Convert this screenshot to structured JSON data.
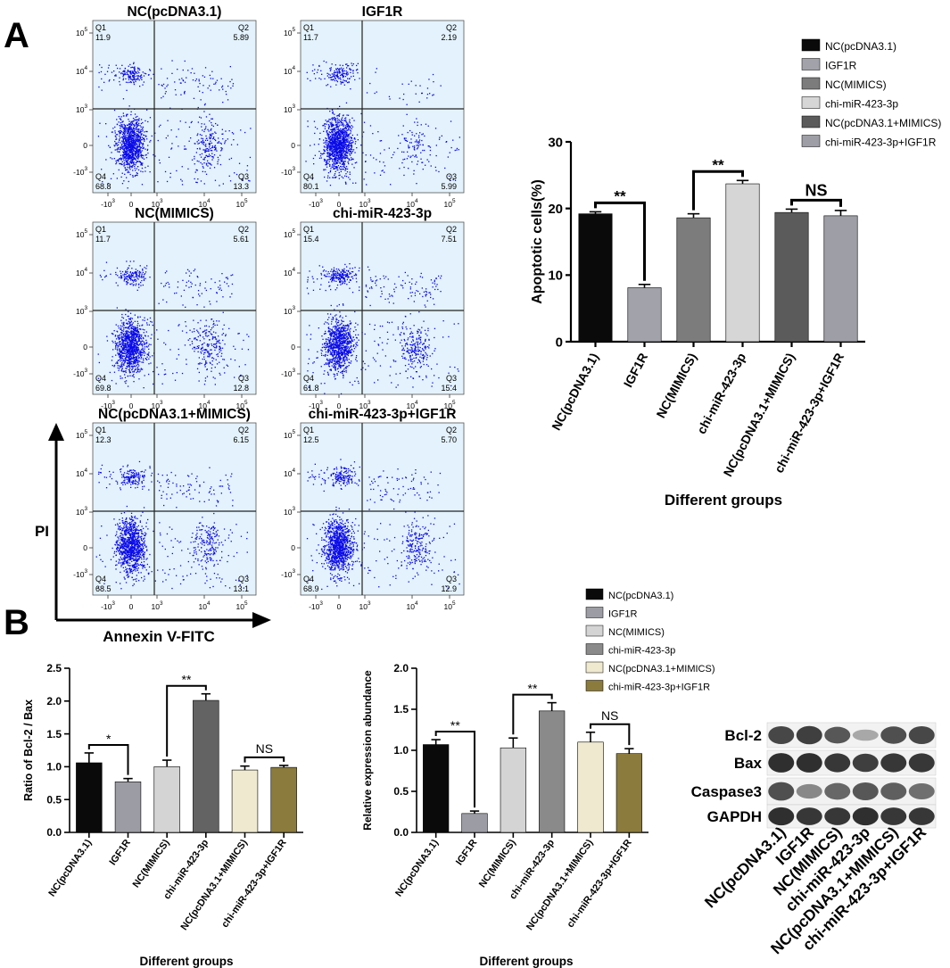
{
  "panel_labels": {
    "a": "A",
    "b": "B"
  },
  "flow": {
    "plots": [
      {
        "title": "NC(pcDNA3.1)",
        "q1_label": "Q1",
        "q1": "11.9",
        "q2_label": "Q2",
        "q2": "5.89",
        "q3_label": "Q3",
        "q3": "13.3",
        "q4_label": "Q4",
        "q4": "68.8"
      },
      {
        "title": "IGF1R",
        "q1_label": "Q1",
        "q1": "11.7",
        "q2_label": "Q2",
        "q2": "2.19",
        "q3_label": "Q3",
        "q3": "5.99",
        "q4_label": "Q4",
        "q4": "80.1"
      },
      {
        "title": "NC(MIMICS)",
        "q1_label": "Q1",
        "q1": "11.7",
        "q2_label": "Q2",
        "q2": "5.61",
        "q3_label": "Q3",
        "q3": "12.8",
        "q4_label": "Q4",
        "q4": "69.8"
      },
      {
        "title": "chi-miR-423-3p",
        "q1_label": "Q1",
        "q1": "15.4",
        "q2_label": "Q2",
        "q2": "7.51",
        "q3_label": "Q3",
        "q3": "15.4",
        "q4_label": "Q4",
        "q4": "61.8"
      },
      {
        "title": "NC(pcDNA3.1+MIMICS)",
        "q1_label": "Q1",
        "q1": "12.3",
        "q2_label": "Q2",
        "q2": "6.15",
        "q3_label": "Q3",
        "q3": "13.1",
        "q4_label": "Q4",
        "q4": "68.5"
      },
      {
        "title": "chi-miR-423-3p+IGF1R",
        "q1_label": "Q1",
        "q1": "12.5",
        "q2_label": "Q2",
        "q2": "5.70",
        "q3_label": "Q3",
        "q3": "12.9",
        "q4_label": "Q4",
        "q4": "68.9"
      }
    ],
    "x_ticks": [
      {
        "base": "-10",
        "exp": "3"
      },
      {
        "base": "0",
        "exp": ""
      },
      {
        "base": "10",
        "exp": "3"
      },
      {
        "base": "10",
        "exp": "4"
      },
      {
        "base": "10",
        "exp": "5"
      }
    ],
    "y_ticks": [
      {
        "base": "10",
        "exp": "5"
      },
      {
        "base": "10",
        "exp": "4"
      },
      {
        "base": "10",
        "exp": "3"
      },
      {
        "base": "0",
        "exp": ""
      },
      {
        "base": "-10",
        "exp": "3"
      }
    ],
    "y_axis_title": "PI",
    "x_axis_title": "Annexin V-FITC",
    "colors": {
      "panel_bg": "#e3f2fc",
      "dots": "#0a0ae8",
      "quadrant_line": "#222222"
    }
  },
  "chart_data": [
    {
      "id": "apoptosis",
      "type": "bar",
      "title": "",
      "xlabel": "Different groups",
      "ylabel": "Apoptotic cells(%)",
      "ylim": [
        0,
        30
      ],
      "yticks": [
        0,
        10,
        20,
        30
      ],
      "categories": [
        "NC(pcDNA3.1)",
        "IGF1R",
        "NC(MIMICS)",
        "chi-miR-423-3p",
        "NC(pcDNA3.1+MIMICS)",
        "chi-miR-423-3p+IGF1R"
      ],
      "values": [
        19.2,
        8.1,
        18.6,
        23.7,
        19.4,
        18.9
      ],
      "errors": [
        0.3,
        0.5,
        0.6,
        0.5,
        0.5,
        0.8
      ],
      "colors": [
        "#0a0a0a",
        "#a2a2aa",
        "#7c7c7c",
        "#d6d6d6",
        "#5b5b5b",
        "#9e9ea6"
      ],
      "legend_position": "top-right",
      "significance": [
        {
          "from": 0,
          "to": 1,
          "label": "**"
        },
        {
          "from": 2,
          "to": 3,
          "label": "**"
        },
        {
          "from": 4,
          "to": 5,
          "label": "NS"
        }
      ]
    },
    {
      "id": "bcl2-bax",
      "type": "bar",
      "title": "",
      "xlabel": "Different groups",
      "ylabel": "Ratio of Bcl-2 / Bax",
      "ylim": [
        0,
        2.5
      ],
      "yticks": [
        "0.0",
        "0.5",
        "1.0",
        "1.5",
        "2.0",
        "2.5"
      ],
      "categories": [
        "NC(pcDNA3.1)",
        "IGF1R",
        "NC(MIMICS)",
        "chi-miR-423-3p",
        "NC(pcDNA3.1+MIMICS)",
        "chi-miR-423-3p+IGF1R"
      ],
      "values": [
        1.06,
        0.77,
        1.0,
        2.01,
        0.95,
        0.99
      ],
      "errors": [
        0.15,
        0.05,
        0.1,
        0.1,
        0.06,
        0.03
      ],
      "colors": [
        "#0a0a0a",
        "#9c9ca4",
        "#d4d4d4",
        "#636363",
        "#efe9cf",
        "#8b7b3c"
      ],
      "significance": [
        {
          "from": 0,
          "to": 1,
          "label": "*"
        },
        {
          "from": 2,
          "to": 3,
          "label": "**"
        },
        {
          "from": 4,
          "to": 5,
          "label": "NS"
        }
      ]
    },
    {
      "id": "relative-expression",
      "type": "bar",
      "title": "",
      "xlabel": "Different groups",
      "ylabel": "Relative expression abundance",
      "ylim": [
        0,
        2.0
      ],
      "yticks": [
        "0.0",
        "0.5",
        "1.0",
        "1.5",
        "2.0"
      ],
      "categories": [
        "NC(pcDNA3.1)",
        "IGF1R",
        "NC(MIMICS)",
        "chi-miR-423-3p",
        "NC(pcDNA3.1+MIMICS)",
        "chi-miR-423-3p+IGF1R"
      ],
      "values": [
        1.07,
        0.23,
        1.03,
        1.48,
        1.1,
        0.96
      ],
      "errors": [
        0.06,
        0.03,
        0.12,
        0.1,
        0.12,
        0.06
      ],
      "colors": [
        "#0a0a0a",
        "#9c9ca4",
        "#d4d4d4",
        "#8a8a8a",
        "#efe9cf",
        "#8b7b3c"
      ],
      "legend_position": "top-right",
      "significance": [
        {
          "from": 0,
          "to": 1,
          "label": "**"
        },
        {
          "from": 2,
          "to": 3,
          "label": "**"
        },
        {
          "from": 4,
          "to": 5,
          "label": "NS"
        }
      ]
    }
  ],
  "western": {
    "proteins": [
      "Bcl-2",
      "Bax",
      "Caspase3",
      "GAPDH"
    ],
    "lanes": [
      "NC(pcDNA3.1)",
      "IGF1R",
      "NC(MIMICS)",
      "chi-miR-423-3p",
      "NC(pcDNA3.1+MIMICS)",
      "chi-miR-423-3p+IGF1R"
    ],
    "band_intensity": [
      [
        0.85,
        0.9,
        0.75,
        0.25,
        0.8,
        0.85
      ],
      [
        1.0,
        1.0,
        0.95,
        0.9,
        0.95,
        0.95
      ],
      [
        0.8,
        0.45,
        0.65,
        0.75,
        0.7,
        0.6
      ],
      [
        1.0,
        0.95,
        0.95,
        1.0,
        0.95,
        0.95
      ]
    ]
  }
}
